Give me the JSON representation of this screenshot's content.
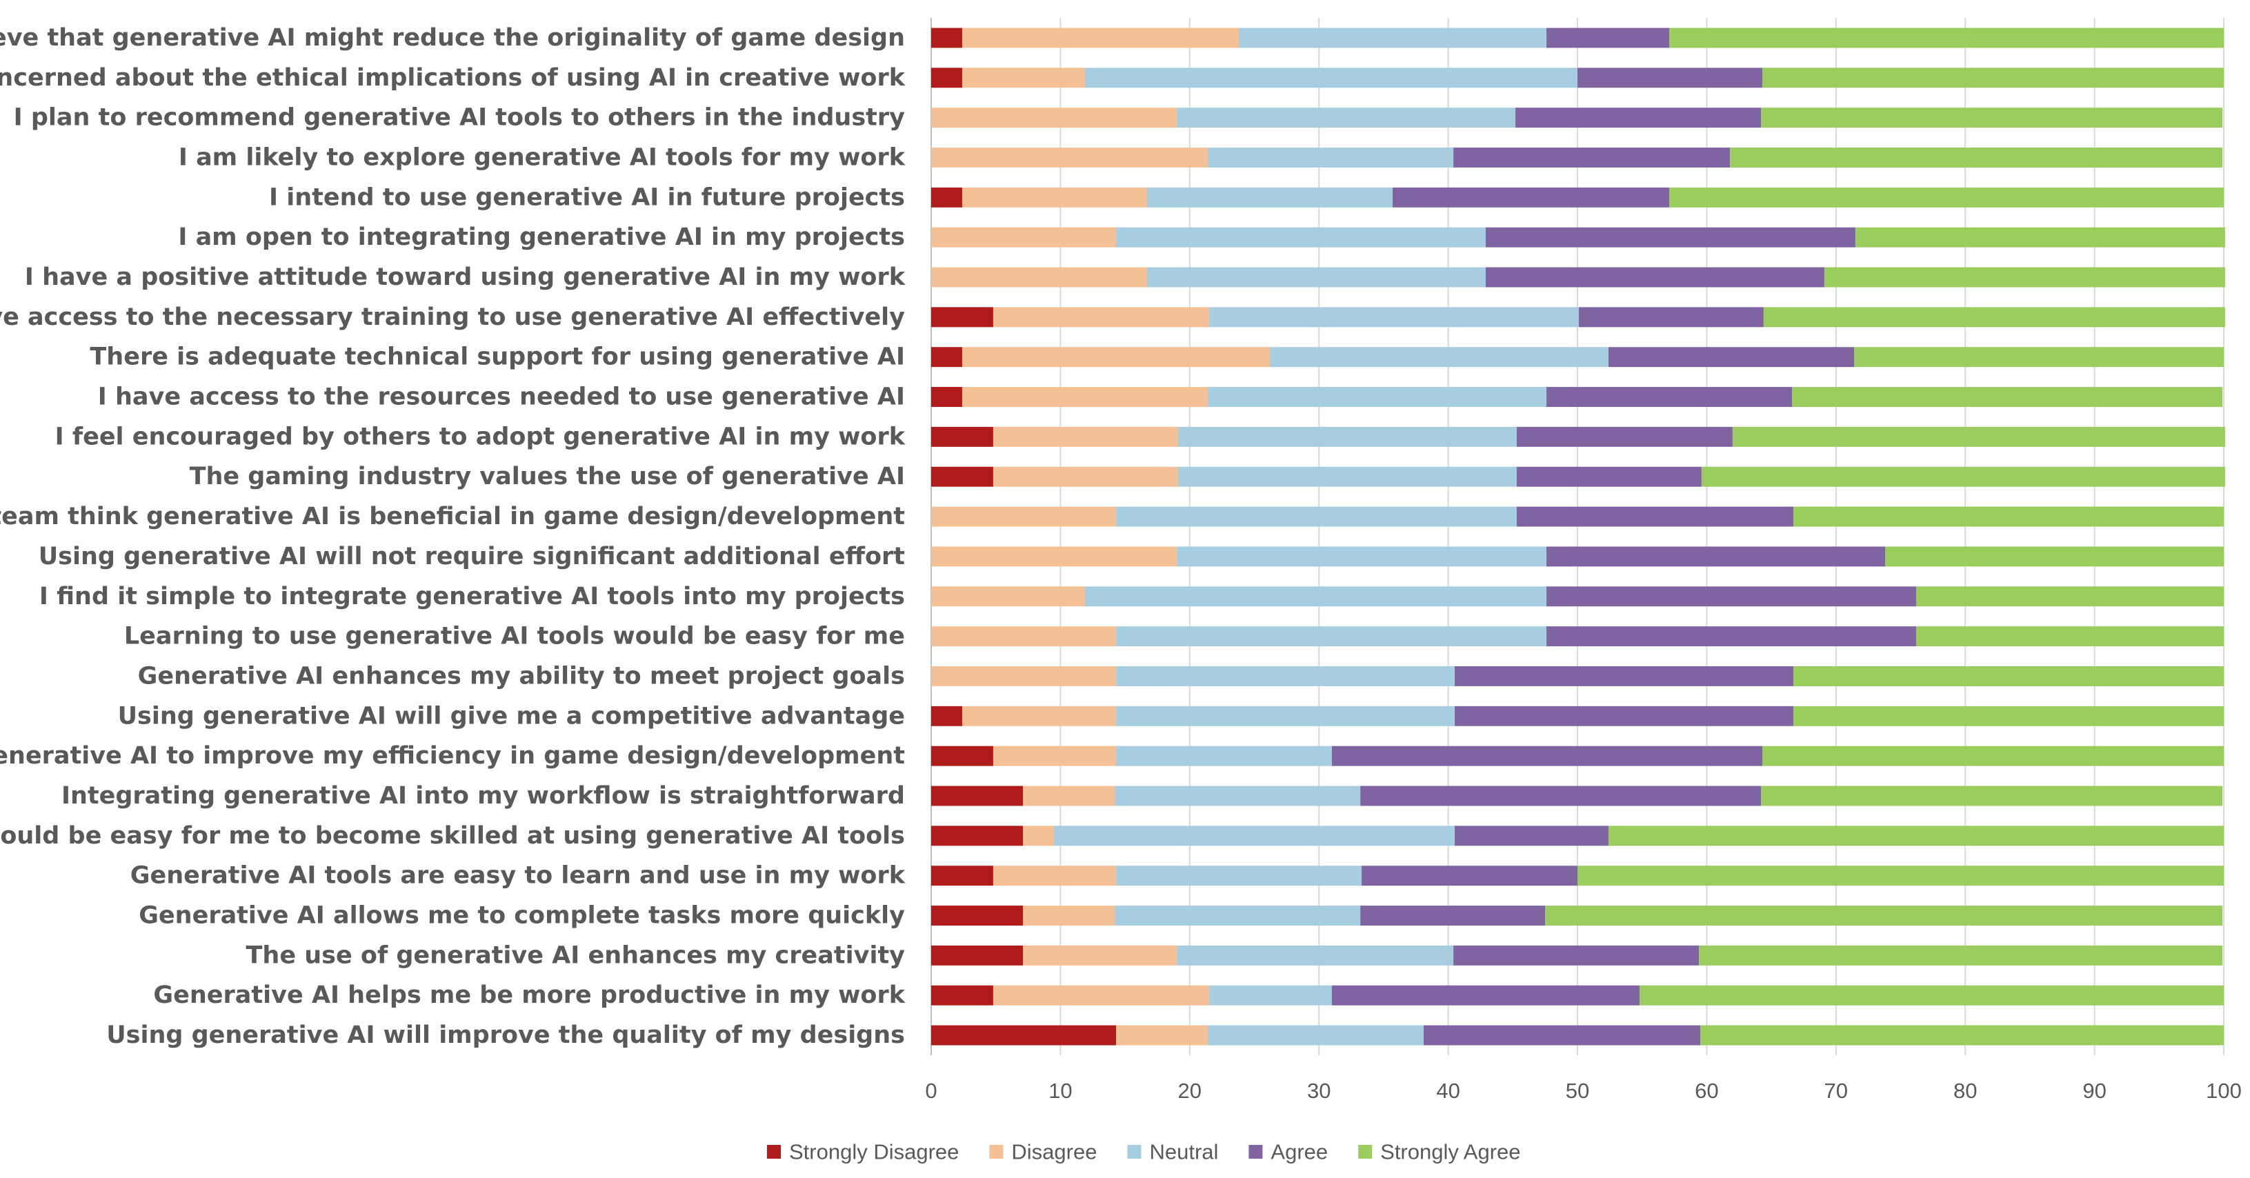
{
  "chart_data": {
    "type": "bar",
    "orientation": "horizontal",
    "stacked": true,
    "title": "",
    "xlabel": "",
    "ylabel": "",
    "xlim": [
      0,
      100
    ],
    "xticks": [
      0,
      10,
      20,
      30,
      40,
      50,
      60,
      70,
      80,
      90,
      100
    ],
    "grid": true,
    "legend_position": "bottom",
    "categories": [
      "I believe that generative AI might reduce the originality of game design",
      "I am concerned about the ethical implications of using AI in creative work",
      "I plan to recommend generative AI tools to others in the industry",
      "I am likely to explore generative AI tools for my work",
      "I intend to use generative AI in future projects",
      "I am open to integrating generative AI in my projects",
      "I have a positive attitude toward using generative AI in my work",
      "I have access to the necessary training to use generative AI effectively",
      "There is adequate technical support for using generative AI",
      "I have access to the resources needed to use generative AI",
      "I feel encouraged by others to adopt generative AI in my work",
      "The gaming industry values the use of generative AI",
      "My team think generative AI is beneficial in game design/development",
      "Using generative AI will not require significant additional effort",
      "I find it simple to integrate generative AI tools into my projects",
      "Learning to use generative AI tools would be easy for me",
      "Generative AI enhances my ability to meet project goals",
      "Using generative AI will give me a competitive advantage",
      "I expect generative AI to improve my efficiency in game design/development",
      "Integrating generative AI into my workflow is straightforward",
      "It would be easy for me to become skilled at using generative AI tools",
      "Generative AI tools are easy to learn and use in my work",
      "Generative AI allows me to complete tasks more quickly",
      "The use of generative AI enhances my creativity",
      "Generative AI helps me be more productive in my work",
      "Using generative AI will improve the quality of my designs"
    ],
    "series": [
      {
        "name": "Strongly Disagree",
        "color": "#b01c1c",
        "values": [
          2.4,
          2.4,
          0,
          0,
          2.4,
          0,
          0,
          4.8,
          2.4,
          2.4,
          4.8,
          4.8,
          0,
          0,
          0,
          0,
          0,
          2.4,
          4.8,
          7.1,
          7.1,
          4.8,
          7.1,
          7.1,
          4.8,
          14.3
        ]
      },
      {
        "name": "Disagree",
        "color": "#f4c197",
        "values": [
          21.4,
          9.5,
          19.0,
          21.4,
          14.3,
          14.3,
          16.7,
          16.7,
          23.8,
          19.0,
          14.3,
          14.3,
          14.3,
          19.0,
          11.9,
          14.3,
          14.3,
          11.9,
          9.5,
          7.1,
          2.4,
          9.5,
          7.1,
          11.9,
          16.7,
          7.1
        ]
      },
      {
        "name": "Neutral",
        "color": "#a6cee0",
        "values": [
          23.8,
          38.1,
          26.2,
          19.0,
          19.0,
          28.6,
          26.2,
          28.6,
          26.2,
          26.2,
          26.2,
          26.2,
          31.0,
          28.6,
          35.7,
          33.3,
          26.2,
          26.2,
          16.7,
          19.0,
          31.0,
          19.0,
          19.0,
          21.4,
          9.5,
          16.7
        ]
      },
      {
        "name": "Agree",
        "color": "#8064a2",
        "values": [
          9.5,
          14.3,
          19.0,
          21.4,
          21.4,
          28.6,
          26.2,
          14.3,
          19.0,
          19.0,
          16.7,
          14.3,
          21.4,
          26.2,
          28.6,
          28.6,
          26.2,
          26.2,
          33.3,
          31.0,
          11.9,
          16.7,
          14.3,
          19.0,
          23.8,
          21.4
        ]
      },
      {
        "name": "Strongly Agree",
        "color": "#9bcc5e",
        "values": [
          42.9,
          35.7,
          35.7,
          38.1,
          42.9,
          28.6,
          31.0,
          35.7,
          28.6,
          33.3,
          38.1,
          40.5,
          33.3,
          26.2,
          23.8,
          23.8,
          33.3,
          33.3,
          35.7,
          35.7,
          47.6,
          50.0,
          52.4,
          40.5,
          45.2,
          40.5
        ]
      }
    ]
  }
}
